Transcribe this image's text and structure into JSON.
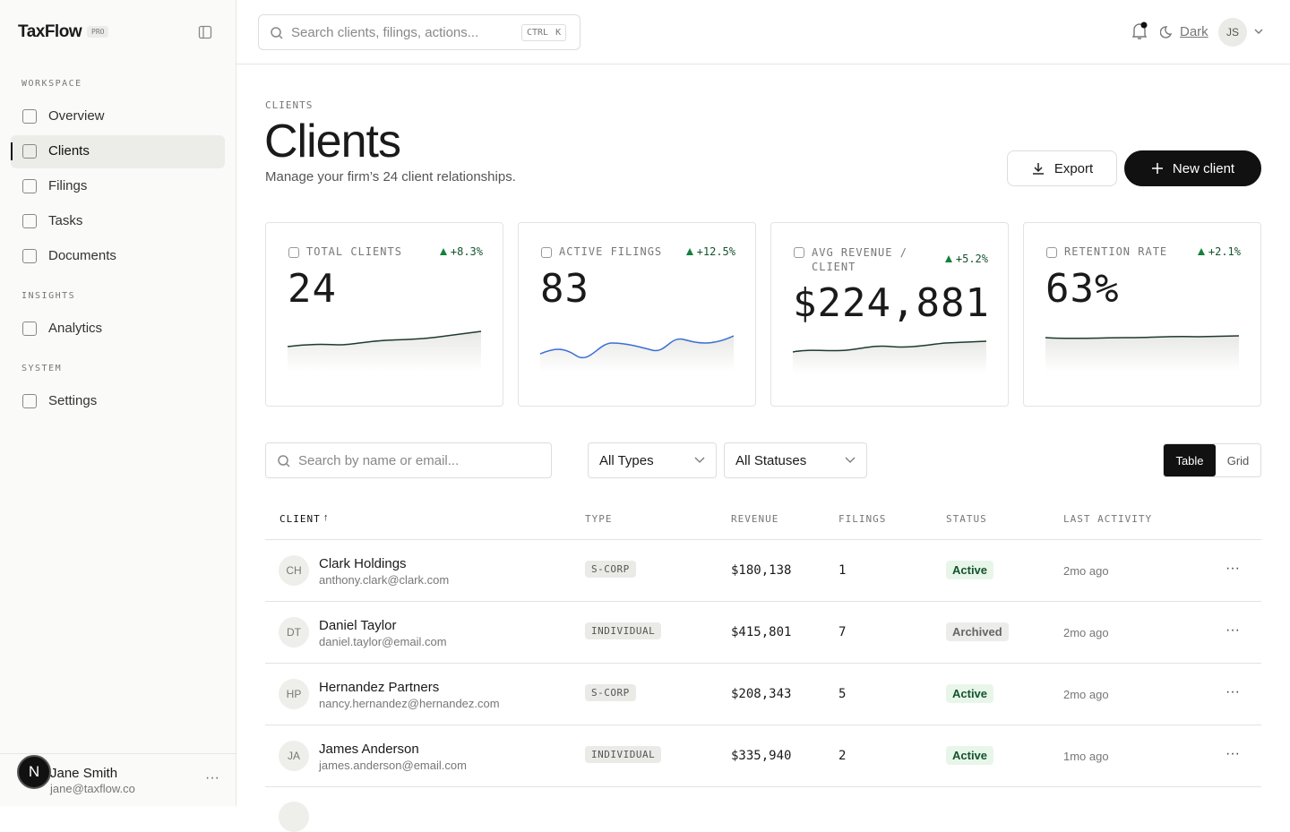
{
  "sidebar": {
    "brand": "TaxFlow",
    "badge": "PRO",
    "sections": [
      {
        "title": "WORKSPACE",
        "items": [
          "Overview",
          "Clients",
          "Filings",
          "Tasks",
          "Documents"
        ]
      },
      {
        "title": "INSIGHTS",
        "items": [
          "Analytics"
        ]
      },
      {
        "title": "SYSTEM",
        "items": [
          "Settings"
        ]
      }
    ],
    "user": {
      "initial": "N",
      "name": "Jane Smith",
      "email": "jane@taxflow.co"
    }
  },
  "topbar": {
    "search": "Search clients, filings, actions...",
    "keys": [
      "CTRL",
      "K"
    ],
    "theme": "Dark",
    "avatar": "JS"
  },
  "header": {
    "breadcrumb": "CLIENTS",
    "title": "Clients",
    "subtitle": "Manage your firm’s 24 client relationships.",
    "export": "Export",
    "new": "New client"
  },
  "stats": [
    {
      "label": "TOTAL CLIENTS",
      "change": "+8.3%",
      "value": "24"
    },
    {
      "label": "ACTIVE FILINGS",
      "change": "+12.5%",
      "value": "83"
    },
    {
      "label": "AVG REVENUE / CLIENT",
      "change": "+5.2%",
      "value": "$224,881"
    },
    {
      "label": "RETENTION RATE",
      "change": "+2.1%",
      "value": "63%"
    }
  ],
  "filters": {
    "search": "Search by name or email...",
    "type": "All Types",
    "status": "All Statuses",
    "views": [
      "Table",
      "Grid"
    ]
  },
  "table": {
    "columns": [
      "CLIENT",
      "TYPE",
      "REVENUE",
      "FILINGS",
      "STATUS",
      "LAST ACTIVITY"
    ],
    "rows": [
      [
        "CH",
        "Clark Holdings",
        "anthony.clark@clark.com",
        "S-CORP",
        "$180,138",
        "1",
        "Active",
        "2mo ago"
      ],
      [
        "DT",
        "Daniel Taylor",
        "daniel.taylor@email.com",
        "INDIVIDUAL",
        "$415,801",
        "7",
        "Archived",
        "2mo ago"
      ],
      [
        "HP",
        "Hernandez Partners",
        "nancy.hernandez@hernandez.com",
        "S-CORP",
        "$208,343",
        "5",
        "Active",
        "2mo ago"
      ],
      [
        "JA",
        "James Anderson",
        "james.anderson@email.com",
        "INDIVIDUAL",
        "$335,940",
        "2",
        "Active",
        "1mo ago"
      ]
    ]
  }
}
